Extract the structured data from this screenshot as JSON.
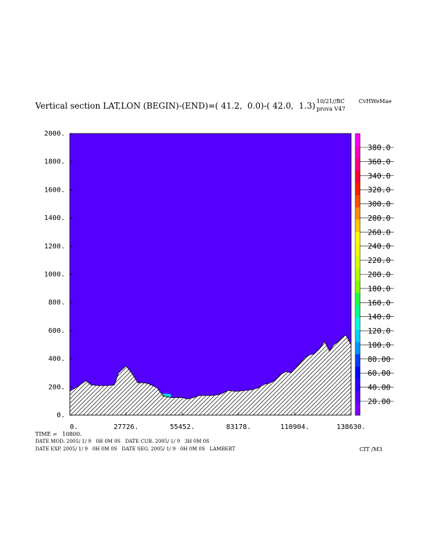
{
  "header": {
    "title": "Vertical section LAT,LON (BEGIN)-(END)=( 41.2,  0.0)-( 42.0,  1.3)",
    "date_code": "10/21//BC",
    "version": "prova V47",
    "field_code": "CvHWeMae"
  },
  "chart_data": {
    "type": "heatmap",
    "title": "Vertical section LAT,LON (BEGIN)-(END)=( 41.2,  0.0)-( 42.0,  1.3)",
    "xlabel": "",
    "ylabel": "",
    "xlim": [
      0,
      138630
    ],
    "ylim": [
      0,
      2000
    ],
    "x_tick_labels": [
      "0.",
      "27726.",
      "55452.",
      "83178.",
      "110904.",
      "138630."
    ],
    "x_ticks": [
      0,
      27726,
      55452,
      83178,
      110904,
      138630
    ],
    "y_tick_labels": [
      "0.",
      "200.",
      "400.",
      "600.",
      "800.",
      "1000.",
      "1200.",
      "1400.",
      "1600.",
      "1800.",
      "2000."
    ],
    "y_ticks": [
      0,
      200,
      400,
      600,
      800,
      1000,
      1200,
      1400,
      1600,
      1800,
      2000
    ],
    "background_color": "#5500ff",
    "terrain": {
      "x": [
        0,
        4000,
        8000,
        10500,
        14000,
        18500,
        22000,
        24000,
        27700,
        30500,
        33500,
        36500,
        38500,
        40000,
        43000,
        46000,
        50000,
        55500,
        58000,
        61000,
        64000,
        67500,
        71000,
        74500,
        78000,
        81000,
        83200,
        86000,
        89500,
        93000,
        96000,
        98000,
        101000,
        104000,
        106500,
        109000,
        111000,
        113500,
        116000,
        118500,
        120500,
        123000,
        125500,
        128000,
        130000,
        132000,
        134000,
        136000,
        138630
      ],
      "y": [
        170,
        205,
        245,
        215,
        210,
        210,
        215,
        300,
        350,
        300,
        230,
        230,
        225,
        215,
        195,
        135,
        125,
        125,
        115,
        125,
        140,
        140,
        140,
        150,
        175,
        170,
        170,
        175,
        180,
        195,
        220,
        225,
        245,
        290,
        310,
        300,
        330,
        370,
        410,
        430,
        435,
        470,
        525,
        455,
        500,
        520,
        550,
        570,
        500
      ]
    },
    "feature": {
      "x_range": [
        42500,
        50000
      ],
      "z_range": [
        125,
        152
      ]
    },
    "colorbar": {
      "labels": [
        "20.00",
        "40.00",
        "60.00",
        "80.00",
        "100.0",
        "120.0",
        "140.0",
        "160.0",
        "180.0",
        "200.0",
        "220.0",
        "240.0",
        "260.0",
        "280.0",
        "300.0",
        "320.0",
        "340.0",
        "360.0",
        "380.0"
      ],
      "colors": [
        "#8000ff",
        "#5a00ff",
        "#2f00ff",
        "#0008ff",
        "#0040ff",
        "#0098ff",
        "#00d2ff",
        "#00ffe0",
        "#00ff90",
        "#20ff40",
        "#80ff00",
        "#b0ff00",
        "#d6ff00",
        "#f0ff00",
        "#ffff00",
        "#ffc800",
        "#ff8c00",
        "#ff5000",
        "#ff1e00",
        "#ff0030",
        "#ff0080",
        "#ff00c0",
        "#ff00ff"
      ]
    }
  },
  "footer": {
    "time_label": "TIME =",
    "time_value": "10800.",
    "line1": "DATE MOD. 2005/ 1/ 9   0H 0M 0S   DATE CUR. 2005/ 1/ 9   3H 0M 0S",
    "line2": "DATE EXP. 2005/ 1/ 9   0H 0M 0S   DATE SEG. 2005/ 1/ 9   0H 0M 0S   LAMBERT",
    "code": "CIT /M3"
  }
}
